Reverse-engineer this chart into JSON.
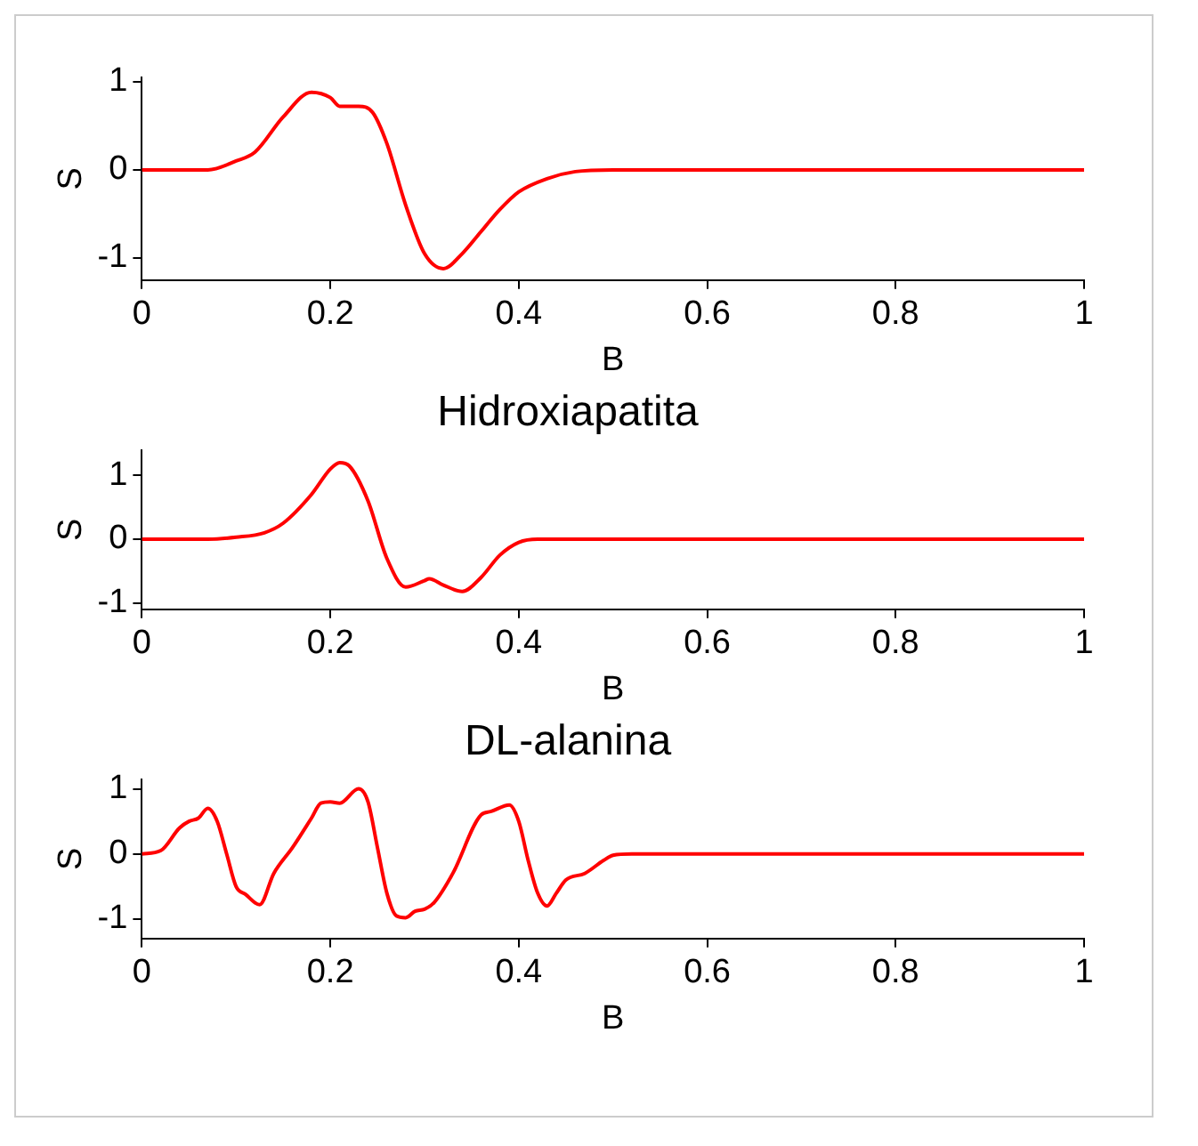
{
  "chart_data": [
    {
      "type": "line",
      "xlabel": "B",
      "ylabel": "S",
      "xlim": [
        0,
        1
      ],
      "xticks": [
        0,
        0.2,
        0.4,
        0.6,
        0.8,
        1
      ],
      "ylim": [
        -1.25,
        1.05
      ],
      "yticks": [
        -1,
        0,
        1
      ],
      "grid": false,
      "legend": false,
      "x": [
        0,
        0.07,
        0.1,
        0.12,
        0.15,
        0.18,
        0.2,
        0.21,
        0.23,
        0.245,
        0.26,
        0.28,
        0.3,
        0.32,
        0.34,
        0.36,
        0.38,
        0.4,
        0.43,
        0.46,
        0.5,
        1
      ],
      "series": [
        {
          "color": "#ff0000",
          "values": [
            0,
            0,
            0.1,
            0.2,
            0.6,
            0.88,
            0.82,
            0.72,
            0.72,
            0.65,
            0.3,
            -0.4,
            -0.95,
            -1.12,
            -0.95,
            -0.7,
            -0.45,
            -0.25,
            -0.1,
            -0.02,
            0,
            0
          ]
        }
      ]
    },
    {
      "type": "line",
      "title": "Hidroxiapatita",
      "xlabel": "B",
      "ylabel": "S",
      "xlim": [
        0,
        1
      ],
      "xticks": [
        0,
        0.2,
        0.4,
        0.6,
        0.8,
        1
      ],
      "ylim": [
        -1.1,
        1.4
      ],
      "yticks": [
        -1,
        0,
        1
      ],
      "grid": false,
      "legend": false,
      "x": [
        0,
        0.07,
        0.1,
        0.13,
        0.15,
        0.18,
        0.2,
        0.21,
        0.22,
        0.24,
        0.26,
        0.28,
        0.3,
        0.305,
        0.32,
        0.34,
        0.36,
        0.38,
        0.4,
        0.42,
        1
      ],
      "series": [
        {
          "color": "#ff0000",
          "values": [
            0,
            0,
            0.03,
            0.1,
            0.25,
            0.7,
            1.1,
            1.2,
            1.15,
            0.6,
            -0.3,
            -0.75,
            -0.65,
            -0.62,
            -0.72,
            -0.82,
            -0.6,
            -0.25,
            -0.05,
            0,
            0
          ]
        }
      ]
    },
    {
      "type": "line",
      "title": "DL-alanina",
      "xlabel": "B",
      "ylabel": "S",
      "xlim": [
        0,
        1
      ],
      "xticks": [
        0,
        0.2,
        0.4,
        0.6,
        0.8,
        1
      ],
      "ylim": [
        -1.3,
        1.15
      ],
      "yticks": [
        -1,
        0,
        1
      ],
      "grid": false,
      "legend": false,
      "x": [
        0,
        0.02,
        0.04,
        0.05,
        0.06,
        0.07,
        0.08,
        0.09,
        0.1,
        0.11,
        0.125,
        0.14,
        0.16,
        0.18,
        0.19,
        0.2,
        0.21,
        0.23,
        0.24,
        0.25,
        0.26,
        0.27,
        0.28,
        0.29,
        0.3,
        0.31,
        0.33,
        0.36,
        0.37,
        0.39,
        0.4,
        0.41,
        0.42,
        0.43,
        0.44,
        0.45,
        0.47,
        0.49,
        0.5,
        0.52,
        1
      ],
      "series": [
        {
          "color": "#ff0000",
          "values": [
            0,
            0.05,
            0.4,
            0.5,
            0.55,
            0.7,
            0.5,
            0,
            -0.5,
            -0.62,
            -0.78,
            -0.3,
            0.1,
            0.55,
            0.78,
            0.8,
            0.78,
            1,
            0.8,
            0.1,
            -0.6,
            -0.95,
            -0.98,
            -0.88,
            -0.85,
            -0.75,
            -0.3,
            0.6,
            0.65,
            0.75,
            0.5,
            -0.1,
            -0.6,
            -0.8,
            -0.6,
            -0.4,
            -0.3,
            -0.1,
            -0.02,
            0,
            0
          ]
        }
      ]
    }
  ]
}
